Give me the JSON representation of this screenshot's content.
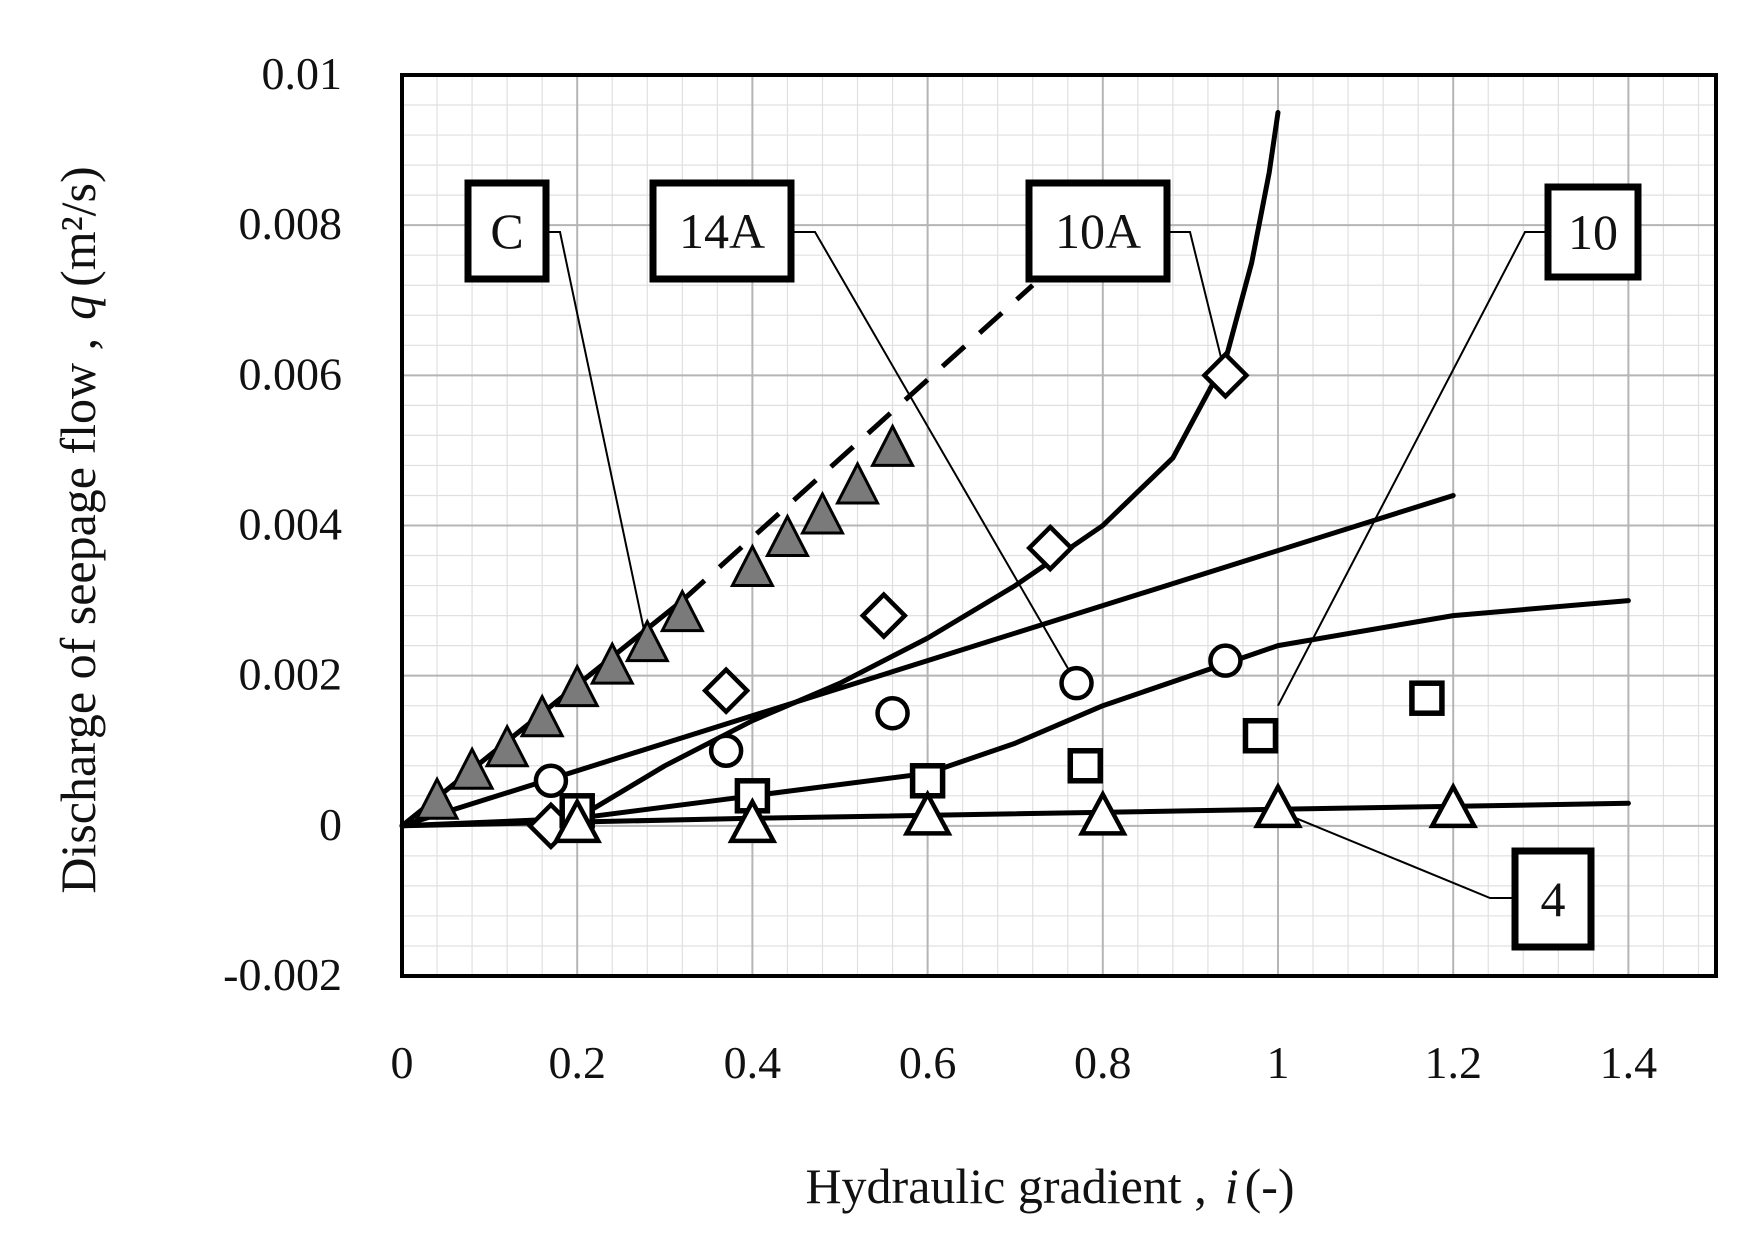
{
  "chart_data": {
    "type": "scatter",
    "xlabel_main": "Hydraulic gradient",
    "xlabel_sep": " ,",
    "xlabel_var": "i",
    "xlabel_unit": "(-)",
    "ylabel_main": "Discharge of seepage flow",
    "ylabel_sep": " ,",
    "ylabel_var": "q",
    "ylabel_unit": "(m²/s)",
    "xlim": [
      0,
      1.5
    ],
    "ylim": [
      -0.002,
      0.01
    ],
    "x_ticks": [
      0,
      0.2,
      0.4,
      0.6,
      0.8,
      1.0,
      1.2,
      1.4
    ],
    "x_tick_labels": [
      "0",
      "0.2",
      "0.4",
      "0.6",
      "0.8",
      "1",
      "1.2",
      "1.4"
    ],
    "y_ticks": [
      -0.002,
      0,
      0.002,
      0.004,
      0.006,
      0.008,
      0.01
    ],
    "y_tick_labels": [
      "-0.002",
      "0",
      "0.002",
      "0.004",
      "0.006",
      "0.008",
      "0.01"
    ],
    "grid": true,
    "minor_grid": true,
    "series": [
      {
        "name": "C",
        "marker": "filled-triangle",
        "points": [
          [
            0.04,
            0.0003
          ],
          [
            0.08,
            0.0007
          ],
          [
            0.12,
            0.001
          ],
          [
            0.16,
            0.0014
          ],
          [
            0.2,
            0.0018
          ],
          [
            0.24,
            0.0021
          ],
          [
            0.28,
            0.0024
          ],
          [
            0.32,
            0.0028
          ],
          [
            0.4,
            0.0034
          ],
          [
            0.44,
            0.0038
          ],
          [
            0.48,
            0.0041
          ],
          [
            0.52,
            0.0045
          ],
          [
            0.56,
            0.005
          ]
        ],
        "fit_solid": [
          [
            0,
            0
          ],
          [
            0.32,
            0.003
          ]
        ],
        "fit_dashed": [
          [
            0.32,
            0.003
          ],
          [
            0.72,
            0.0072
          ]
        ]
      },
      {
        "name": "10A",
        "marker": "open-diamond",
        "points": [
          [
            0.17,
            0.0
          ],
          [
            0.37,
            0.0018
          ],
          [
            0.55,
            0.0028
          ],
          [
            0.74,
            0.0037
          ],
          [
            0.94,
            0.006
          ]
        ],
        "fit_solid": [
          [
            0.2,
            0.0001
          ],
          [
            0.3,
            0.0008
          ],
          [
            0.4,
            0.0014
          ],
          [
            0.5,
            0.0019
          ],
          [
            0.6,
            0.0025
          ],
          [
            0.7,
            0.0032
          ],
          [
            0.8,
            0.004
          ],
          [
            0.88,
            0.0049
          ],
          [
            0.94,
            0.0062
          ],
          [
            0.97,
            0.0075
          ],
          [
            0.99,
            0.0087
          ],
          [
            1.0,
            0.0095
          ]
        ]
      },
      {
        "name": "14A",
        "marker": "open-circle",
        "points": [
          [
            0.17,
            0.0006
          ],
          [
            0.37,
            0.001
          ],
          [
            0.56,
            0.0015
          ],
          [
            0.77,
            0.0019
          ],
          [
            0.94,
            0.0022
          ]
        ],
        "fit_solid": [
          [
            0,
            0
          ],
          [
            1.2,
            0.0044
          ]
        ]
      },
      {
        "name": "10",
        "marker": "open-square",
        "points": [
          [
            0.2,
            0.0002
          ],
          [
            0.4,
            0.0004
          ],
          [
            0.6,
            0.0006
          ],
          [
            0.78,
            0.0008
          ],
          [
            0.98,
            0.0012
          ],
          [
            1.17,
            0.0017
          ]
        ],
        "fit_solid": [
          [
            0,
            0
          ],
          [
            0.2,
            0.0001
          ],
          [
            0.4,
            0.0004
          ],
          [
            0.6,
            0.0007
          ],
          [
            0.7,
            0.0011
          ],
          [
            0.8,
            0.0016
          ],
          [
            0.9,
            0.002
          ],
          [
            1.0,
            0.0024
          ],
          [
            1.2,
            0.0028
          ],
          [
            1.4,
            0.003
          ]
        ]
      },
      {
        "name": "4",
        "marker": "open-triangle",
        "points": [
          [
            0.2,
            0.0
          ],
          [
            0.4,
            0.0
          ],
          [
            0.6,
            0.0001
          ],
          [
            0.8,
            0.0001
          ],
          [
            1.0,
            0.0002
          ],
          [
            1.2,
            0.0002
          ]
        ],
        "fit_solid": [
          [
            0,
            0
          ],
          [
            0.4,
            0.0001
          ],
          [
            1.4,
            0.0003
          ]
        ]
      }
    ],
    "callouts": [
      {
        "label": "C",
        "target": [
          0.28,
          0.0024
        ]
      },
      {
        "label": "14A",
        "target": [
          0.77,
          0.0019
        ]
      },
      {
        "label": "10A",
        "target": [
          0.94,
          0.006
        ]
      },
      {
        "label": "10",
        "target": [
          1.0,
          0.0016
        ]
      },
      {
        "label": "4",
        "target": [
          1.0,
          0.0002
        ]
      }
    ]
  }
}
